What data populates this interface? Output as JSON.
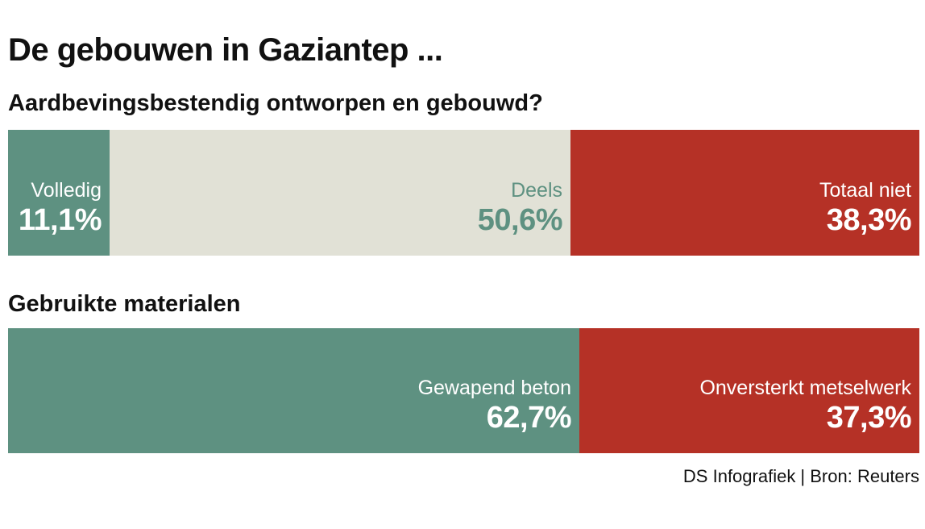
{
  "title": "De gebouwen in Gaziantep ...",
  "source": "DS Infografiek | Bron: Reuters",
  "colors": {
    "green": "#5e9181",
    "beige": "#e1e1d6",
    "red": "#b53126",
    "white": "#ffffff"
  },
  "chart_data": [
    {
      "type": "bar",
      "orientation": "horizontal",
      "stacked": true,
      "title": "Aardbevingsbestendig ontworpen en gebouwd?",
      "categories": [
        "Volledig",
        "Deels",
        "Totaal niet"
      ],
      "values": [
        11.1,
        50.6,
        38.3
      ],
      "value_labels": [
        "11,1%",
        "50,6%",
        "38,3%"
      ],
      "colors": [
        "#5e9181",
        "#e1e1d6",
        "#b53126"
      ],
      "text_colors": [
        "#ffffff",
        "#5e9181",
        "#ffffff"
      ]
    },
    {
      "type": "bar",
      "orientation": "horizontal",
      "stacked": true,
      "title": "Gebruikte materialen",
      "categories": [
        "Gewapend beton",
        "Onversterkt metselwerk"
      ],
      "values": [
        62.7,
        37.3
      ],
      "value_labels": [
        "62,7%",
        "37,3%"
      ],
      "colors": [
        "#5e9181",
        "#b53126"
      ],
      "text_colors": [
        "#ffffff",
        "#ffffff"
      ]
    }
  ]
}
